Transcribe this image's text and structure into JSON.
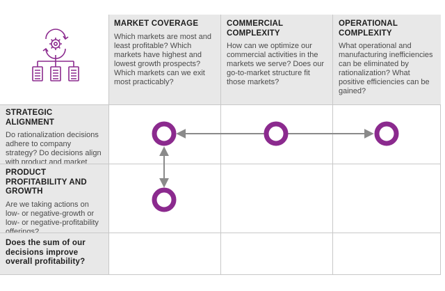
{
  "columns": [
    {
      "title": "MARKET COVERAGE",
      "description": "Which markets are most and least profitable? Which markets have highest and lowest growth prospects? Which markets can we exit most practicably?"
    },
    {
      "title": "COMMERCIAL COMPLEXITY",
      "description": "How can we optimize our commercial activities in the markets we serve? Does our go-to-market structure fit those markets?"
    },
    {
      "title": "OPERATIONAL COMPLEXITY",
      "description": "What operational and manufacturing inefficiencies can be eliminated by rationalization? What positive efficiencies can be gained?"
    }
  ],
  "rows": [
    {
      "title": "STRATEGIC ALIGNMENT",
      "description": "Do rationalization decisions adhere to company strategy? Do decisions align with product and market priorities?"
    },
    {
      "title": "PRODUCT PROFITABILITY AND GROWTH",
      "description": "Are we taking actions on low- or negative-growth or low- or negative-profitability offerings?"
    },
    {
      "title": "",
      "description": "Does the sum of our decisions improve overall profitability?"
    }
  ],
  "colors": {
    "accent": "#8b2a8e",
    "arrow": "#8a8a8a",
    "header_bg": "#e8e8e8",
    "grid_line": "#c8c8c8"
  },
  "icons": {
    "header_icon": "gear-hierarchy-icon"
  }
}
